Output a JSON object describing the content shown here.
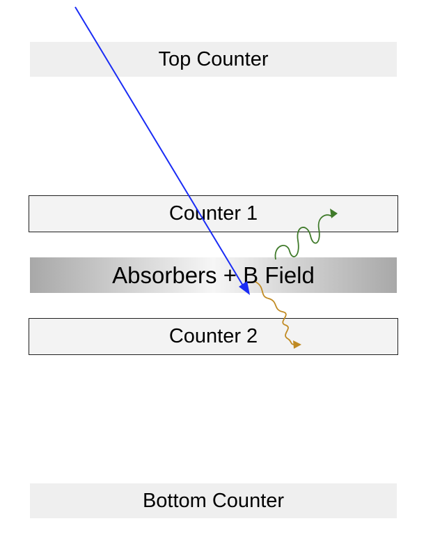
{
  "layers": {
    "top_counter": "Top Counter",
    "counter_1": "Counter 1",
    "absorbers": "Absorbers + B Field",
    "counter_2": "Counter 2",
    "bottom_counter": "Bottom Counter"
  },
  "colors": {
    "incoming_particle": "#1a2cf5",
    "upper_photon": "#3f7a2a",
    "lower_photon": "#c08a22"
  }
}
